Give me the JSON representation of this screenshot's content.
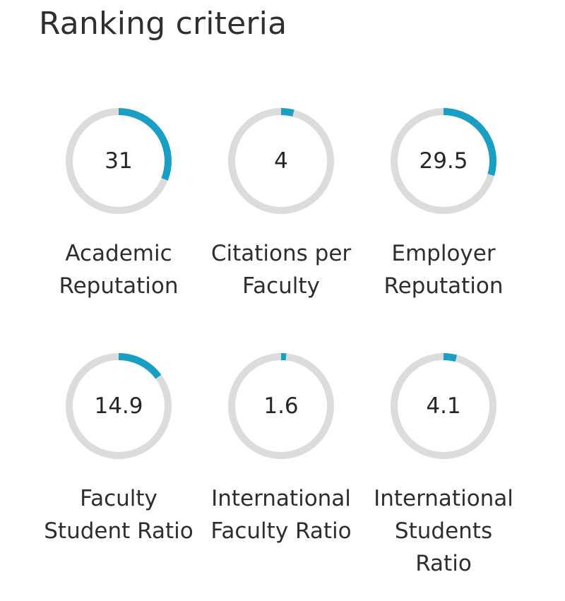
{
  "title": "Ranking criteria",
  "colors": {
    "track": "#dcdcdc",
    "accent": "#1a9fc4"
  },
  "criteria": [
    {
      "value": "31",
      "percent": 31,
      "label_lines": [
        "Academic",
        "Reputation"
      ]
    },
    {
      "value": "4",
      "percent": 4,
      "label_lines": [
        "Citations per",
        "Faculty"
      ]
    },
    {
      "value": "29.5",
      "percent": 29.5,
      "label_lines": [
        "Employer",
        "Reputation"
      ]
    },
    {
      "value": "14.9",
      "percent": 14.9,
      "label_lines": [
        "Faculty",
        "Student Ratio"
      ]
    },
    {
      "value": "1.6",
      "percent": 1.6,
      "label_lines": [
        "International",
        "Faculty Ratio"
      ]
    },
    {
      "value": "4.1",
      "percent": 4.1,
      "label_lines": [
        "International",
        "Students",
        "Ratio"
      ]
    }
  ]
}
